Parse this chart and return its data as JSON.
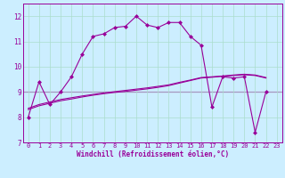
{
  "xlabel": "Windchill (Refroidissement éolien,°C)",
  "bg_color": "#cceeff",
  "line_color": "#990099",
  "grid_color": "#aaddcc",
  "xlim": [
    -0.5,
    23.5
  ],
  "ylim": [
    7,
    12.5
  ],
  "yticks": [
    7,
    8,
    9,
    10,
    11,
    12
  ],
  "xticks": [
    0,
    1,
    2,
    3,
    4,
    5,
    6,
    7,
    8,
    9,
    10,
    11,
    12,
    13,
    14,
    15,
    16,
    17,
    18,
    19,
    20,
    21,
    22,
    23
  ],
  "main_line_x": [
    0,
    1,
    2,
    3,
    4,
    5,
    6,
    7,
    8,
    9,
    10,
    11,
    12,
    13,
    14,
    15,
    16,
    17,
    18,
    19,
    20,
    21,
    22
  ],
  "main_line_y": [
    8.0,
    9.4,
    8.5,
    9.0,
    9.6,
    10.5,
    11.2,
    11.3,
    11.55,
    11.6,
    12.0,
    11.65,
    11.55,
    11.75,
    11.75,
    11.2,
    10.85,
    8.4,
    9.6,
    9.55,
    9.6,
    7.4,
    9.0
  ],
  "smooth_line1_x": [
    0,
    1,
    2,
    3,
    4,
    5,
    6,
    7,
    8,
    9,
    10,
    11,
    12,
    13,
    14,
    15,
    16,
    17,
    18,
    19,
    20,
    21,
    22
  ],
  "smooth_line1_y": [
    8.3,
    8.45,
    8.55,
    8.65,
    8.72,
    8.8,
    8.87,
    8.93,
    8.98,
    9.02,
    9.07,
    9.12,
    9.18,
    9.25,
    9.35,
    9.45,
    9.55,
    9.58,
    9.62,
    9.65,
    9.68,
    9.65,
    9.55
  ],
  "smooth_line2_x": [
    0,
    1,
    2,
    3,
    4,
    5,
    6,
    7,
    8,
    9,
    10,
    11,
    12,
    13,
    14,
    15,
    16,
    17,
    18,
    19,
    20,
    21,
    22
  ],
  "smooth_line2_y": [
    8.35,
    8.5,
    8.6,
    8.7,
    8.77,
    8.84,
    8.9,
    8.96,
    9.01,
    9.06,
    9.11,
    9.16,
    9.22,
    9.28,
    9.38,
    9.47,
    9.57,
    9.6,
    9.63,
    9.67,
    9.7,
    9.67,
    9.57
  ],
  "hline_y": 9.0,
  "font_color": "#990099",
  "marker": "D",
  "markersize": 2.0,
  "linewidth_main": 0.8,
  "linewidth_smooth": 0.8,
  "tick_fontsize": 5.0,
  "xlabel_fontsize": 5.5
}
